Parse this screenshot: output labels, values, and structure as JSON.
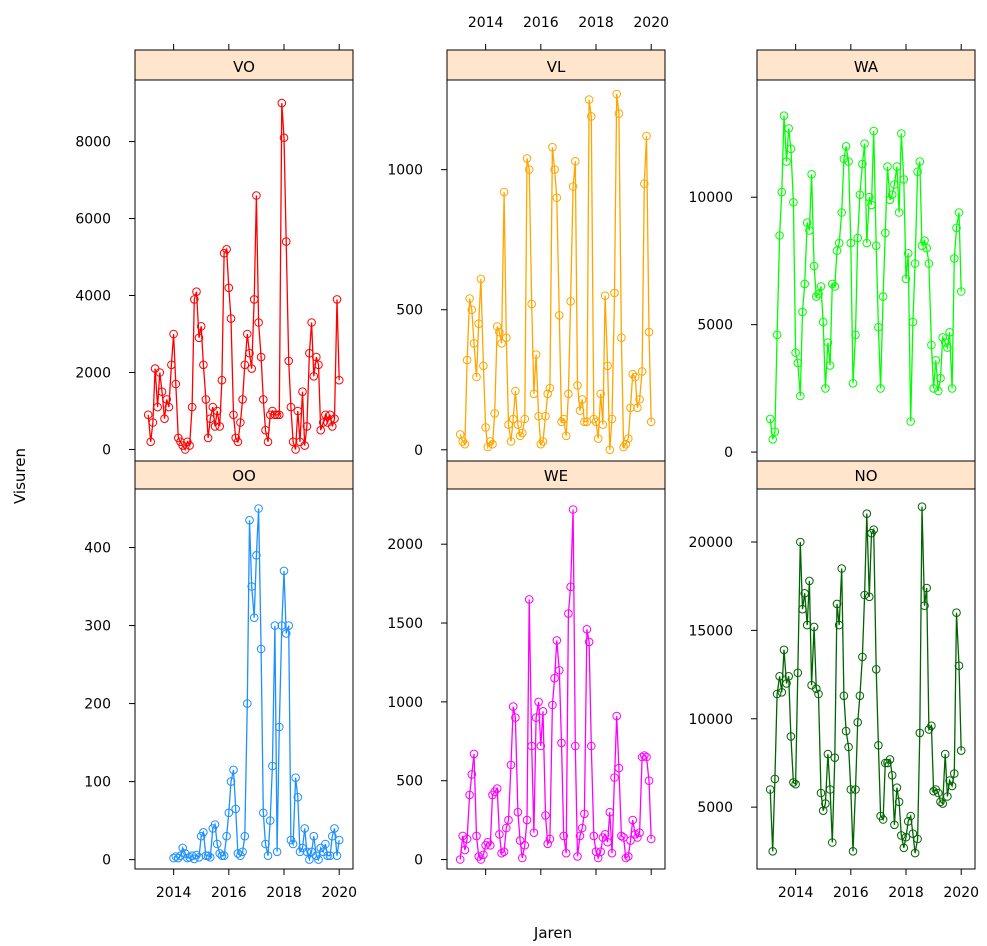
{
  "chart_data": {
    "type": "line",
    "xlabel": "Jaren",
    "ylabel": "Visuren",
    "x_ticks": [
      "2014",
      "2016",
      "2018",
      "2020"
    ],
    "xlim": [
      2012.6,
      2020.5
    ],
    "panels": [
      {
        "name": "VO",
        "color": "#ff0000",
        "ylim": [
          -300,
          9600
        ],
        "y_ticks": [
          0,
          2000,
          4000,
          6000,
          8000
        ],
        "x": [
          2013.08,
          2013.17,
          2013.25,
          2013.33,
          2013.42,
          2013.5,
          2013.58,
          2013.67,
          2013.75,
          2013.83,
          2013.92,
          2014.0,
          2014.08,
          2014.17,
          2014.25,
          2014.33,
          2014.42,
          2014.5,
          2014.58,
          2014.67,
          2014.75,
          2014.83,
          2014.92,
          2015.0,
          2015.08,
          2015.17,
          2015.25,
          2015.33,
          2015.42,
          2015.5,
          2015.58,
          2015.67,
          2015.75,
          2015.83,
          2015.92,
          2016.0,
          2016.08,
          2016.17,
          2016.25,
          2016.33,
          2016.42,
          2016.5,
          2016.58,
          2016.67,
          2016.75,
          2016.83,
          2016.92,
          2017.0,
          2017.08,
          2017.17,
          2017.25,
          2017.33,
          2017.42,
          2017.5,
          2017.58,
          2017.67,
          2017.75,
          2017.83,
          2017.92,
          2018.0,
          2018.08,
          2018.17,
          2018.25,
          2018.33,
          2018.42,
          2018.5,
          2018.58,
          2018.67,
          2018.75,
          2018.83,
          2018.92,
          2019.0,
          2019.08,
          2019.17,
          2019.25,
          2019.33,
          2019.42,
          2019.5,
          2019.58,
          2019.67,
          2019.75,
          2019.83,
          2019.92,
          2020.0
        ],
        "y": [
          900,
          200,
          700,
          2100,
          1100,
          2000,
          1500,
          800,
          1300,
          1100,
          2200,
          3000,
          1700,
          300,
          200,
          100,
          0,
          200,
          100,
          1100,
          3900,
          4100,
          2900,
          3200,
          2200,
          1300,
          300,
          800,
          1100,
          600,
          1000,
          600,
          1800,
          5100,
          5200,
          4200,
          3400,
          900,
          300,
          200,
          700,
          1300,
          2200,
          3000,
          2500,
          2100,
          3900,
          6600,
          3300,
          2400,
          1300,
          500,
          200,
          900,
          1000,
          900,
          900,
          900,
          9000,
          8100,
          5400,
          2300,
          1100,
          200,
          0,
          1000,
          200,
          1500,
          100,
          600,
          2500,
          3300,
          1900,
          2400,
          2200,
          500,
          700,
          900,
          700,
          900,
          600,
          800,
          3900,
          1800
        ]
      },
      {
        "name": "VL",
        "color": "#ffa500",
        "ylim": [
          -40,
          1320
        ],
        "y_ticks": [
          0,
          500,
          1000
        ],
        "x": [
          2013.08,
          2013.17,
          2013.25,
          2013.33,
          2013.42,
          2013.5,
          2013.58,
          2013.67,
          2013.75,
          2013.83,
          2013.92,
          2014.0,
          2014.08,
          2014.17,
          2014.25,
          2014.33,
          2014.42,
          2014.5,
          2014.58,
          2014.67,
          2014.75,
          2014.83,
          2014.92,
          2015.0,
          2015.08,
          2015.17,
          2015.25,
          2015.33,
          2015.42,
          2015.5,
          2015.58,
          2015.67,
          2015.75,
          2015.83,
          2015.92,
          2016.0,
          2016.08,
          2016.17,
          2016.25,
          2016.33,
          2016.42,
          2016.5,
          2016.58,
          2016.67,
          2016.75,
          2016.83,
          2016.92,
          2017.0,
          2017.08,
          2017.17,
          2017.25,
          2017.33,
          2017.42,
          2017.5,
          2017.58,
          2017.67,
          2017.75,
          2017.83,
          2017.92,
          2018.0,
          2018.08,
          2018.17,
          2018.25,
          2018.33,
          2018.42,
          2018.5,
          2018.58,
          2018.67,
          2018.75,
          2018.83,
          2018.92,
          2019.0,
          2019.08,
          2019.17,
          2019.25,
          2019.33,
          2019.42,
          2019.5,
          2019.58,
          2019.67,
          2019.75,
          2019.83,
          2019.92,
          2020.0
        ],
        "y": [
          55,
          30,
          20,
          320,
          540,
          500,
          380,
          260,
          450,
          610,
          300,
          80,
          10,
          30,
          20,
          130,
          440,
          420,
          380,
          920,
          400,
          90,
          30,
          110,
          210,
          90,
          50,
          60,
          110,
          1040,
          1000,
          520,
          200,
          340,
          120,
          20,
          30,
          120,
          200,
          220,
          1080,
          1000,
          900,
          480,
          100,
          110,
          50,
          200,
          530,
          940,
          1030,
          230,
          140,
          180,
          100,
          100,
          1250,
          1190,
          110,
          100,
          40,
          200,
          90,
          550,
          300,
          0,
          110,
          560,
          1270,
          1200,
          400,
          10,
          20,
          40,
          150,
          270,
          260,
          150,
          180,
          280,
          950,
          1120,
          420,
          100
        ]
      },
      {
        "name": "WA",
        "color": "#00ff00",
        "ylim": [
          -350,
          14600
        ],
        "y_ticks": [
          0,
          5000,
          10000
        ],
        "x": [
          2013.08,
          2013.17,
          2013.25,
          2013.33,
          2013.42,
          2013.5,
          2013.58,
          2013.67,
          2013.75,
          2013.83,
          2013.92,
          2014.0,
          2014.08,
          2014.17,
          2014.25,
          2014.33,
          2014.42,
          2014.5,
          2014.58,
          2014.67,
          2014.75,
          2014.83,
          2014.92,
          2015.0,
          2015.08,
          2015.17,
          2015.25,
          2015.33,
          2015.42,
          2015.5,
          2015.58,
          2015.67,
          2015.75,
          2015.83,
          2015.92,
          2016.0,
          2016.08,
          2016.17,
          2016.25,
          2016.33,
          2016.42,
          2016.5,
          2016.58,
          2016.67,
          2016.75,
          2016.83,
          2016.92,
          2017.0,
          2017.08,
          2017.17,
          2017.25,
          2017.33,
          2017.42,
          2017.5,
          2017.58,
          2017.67,
          2017.75,
          2017.83,
          2017.92,
          2018.0,
          2018.08,
          2018.17,
          2018.25,
          2018.33,
          2018.42,
          2018.5,
          2018.58,
          2018.67,
          2018.75,
          2018.83,
          2018.92,
          2019.0,
          2019.08,
          2019.17,
          2019.25,
          2019.33,
          2019.42,
          2019.5,
          2019.58,
          2019.67,
          2019.75,
          2019.83,
          2019.92,
          2020.0
        ],
        "y": [
          1300,
          500,
          800,
          4600,
          8500,
          10200,
          13200,
          11400,
          12700,
          11900,
          9800,
          3900,
          3500,
          2200,
          5500,
          6600,
          9000,
          8700,
          10900,
          7300,
          6100,
          6200,
          6500,
          5100,
          2500,
          4300,
          3400,
          6600,
          6500,
          7900,
          8200,
          9400,
          11500,
          12000,
          11400,
          8200,
          2700,
          4600,
          8400,
          10100,
          11300,
          12100,
          8200,
          10000,
          9700,
          12600,
          8100,
          4900,
          2500,
          6100,
          8600,
          11200,
          9900,
          10100,
          10500,
          11200,
          9400,
          12500,
          10700,
          6800,
          7800,
          1200,
          5100,
          7400,
          11000,
          11400,
          8100,
          8300,
          8000,
          7400,
          4200,
          2500,
          3600,
          2400,
          2900,
          4500,
          4300,
          4100,
          4700,
          2500,
          7600,
          8800,
          9400,
          6300
        ]
      },
      {
        "name": "OO",
        "color": "#1e90ff",
        "ylim": [
          -12,
          475
        ],
        "y_ticks": [
          0,
          100,
          200,
          300,
          400
        ],
        "x": [
          2014.0,
          2014.08,
          2014.17,
          2014.25,
          2014.33,
          2014.42,
          2014.5,
          2014.58,
          2014.67,
          2014.75,
          2014.83,
          2014.92,
          2015.0,
          2015.08,
          2015.17,
          2015.25,
          2015.33,
          2015.42,
          2015.5,
          2015.58,
          2015.67,
          2015.75,
          2015.83,
          2015.92,
          2016.0,
          2016.08,
          2016.17,
          2016.25,
          2016.33,
          2016.42,
          2016.5,
          2016.58,
          2016.67,
          2016.75,
          2016.83,
          2016.92,
          2017.0,
          2017.08,
          2017.17,
          2017.25,
          2017.33,
          2017.42,
          2017.5,
          2017.58,
          2017.67,
          2017.75,
          2017.83,
          2017.92,
          2018.0,
          2018.08,
          2018.17,
          2018.25,
          2018.33,
          2018.42,
          2018.5,
          2018.58,
          2018.67,
          2018.75,
          2018.83,
          2018.92,
          2019.0,
          2019.08,
          2019.17,
          2019.25,
          2019.33,
          2019.42,
          2019.5,
          2019.58,
          2019.67,
          2019.75,
          2019.83,
          2019.92,
          2020.0
        ],
        "y": [
          2,
          4,
          2,
          5,
          15,
          8,
          2,
          3,
          5,
          1,
          6,
          3,
          30,
          35,
          5,
          5,
          3,
          40,
          45,
          20,
          8,
          5,
          5,
          30,
          60,
          100,
          115,
          65,
          8,
          5,
          10,
          30,
          200,
          435,
          350,
          310,
          390,
          450,
          270,
          60,
          20,
          5,
          50,
          120,
          300,
          10,
          170,
          300,
          370,
          290,
          300,
          25,
          20,
          105,
          80,
          10,
          15,
          40,
          10,
          0,
          10,
          30,
          5,
          0,
          15,
          10,
          20,
          5,
          5,
          30,
          40,
          5,
          25
        ]
      },
      {
        "name": "WE",
        "color": "#ff00ff",
        "ylim": [
          -60,
          2350
        ],
        "y_ticks": [
          0,
          500,
          1000,
          1500,
          2000
        ],
        "x": [
          2013.08,
          2013.17,
          2013.25,
          2013.33,
          2013.42,
          2013.5,
          2013.58,
          2013.67,
          2013.75,
          2013.83,
          2013.92,
          2014.0,
          2014.08,
          2014.17,
          2014.25,
          2014.33,
          2014.42,
          2014.5,
          2014.58,
          2014.67,
          2014.75,
          2014.83,
          2014.92,
          2015.0,
          2015.08,
          2015.17,
          2015.25,
          2015.33,
          2015.42,
          2015.5,
          2015.58,
          2015.67,
          2015.75,
          2015.83,
          2015.92,
          2016.0,
          2016.08,
          2016.17,
          2016.25,
          2016.33,
          2016.42,
          2016.5,
          2016.58,
          2016.67,
          2016.75,
          2016.83,
          2016.92,
          2017.0,
          2017.08,
          2017.17,
          2017.25,
          2017.33,
          2017.42,
          2017.5,
          2017.58,
          2017.67,
          2017.75,
          2017.83,
          2017.92,
          2018.0,
          2018.08,
          2018.17,
          2018.25,
          2018.33,
          2018.42,
          2018.5,
          2018.58,
          2018.67,
          2018.75,
          2018.83,
          2018.92,
          2019.0,
          2019.08,
          2019.17,
          2019.25,
          2019.33,
          2019.42,
          2019.5,
          2019.58,
          2019.67,
          2019.75,
          2019.83,
          2019.92,
          2020.0
        ],
        "y": [
          0,
          150,
          60,
          130,
          410,
          540,
          670,
          150,
          20,
          0,
          30,
          90,
          110,
          90,
          410,
          430,
          450,
          160,
          40,
          50,
          200,
          250,
          600,
          970,
          900,
          300,
          120,
          10,
          90,
          250,
          1650,
          720,
          170,
          900,
          1000,
          720,
          940,
          280,
          100,
          130,
          980,
          1150,
          1390,
          1200,
          740,
          150,
          40,
          1560,
          1730,
          2220,
          720,
          20,
          150,
          200,
          290,
          1460,
          1380,
          720,
          150,
          50,
          10,
          50,
          140,
          160,
          110,
          300,
          40,
          520,
          910,
          580,
          150,
          140,
          10,
          20,
          120,
          250,
          160,
          140,
          170,
          650,
          660,
          650,
          500,
          130
        ]
      },
      {
        "name": "NO",
        "color": "#006400",
        "ylim": [
          1500,
          23000
        ],
        "y_ticks": [
          5000,
          10000,
          15000,
          20000
        ],
        "x": [
          2013.08,
          2013.17,
          2013.25,
          2013.33,
          2013.42,
          2013.5,
          2013.58,
          2013.67,
          2013.75,
          2013.83,
          2013.92,
          2014.0,
          2014.08,
          2014.17,
          2014.25,
          2014.33,
          2014.42,
          2014.5,
          2014.58,
          2014.67,
          2014.75,
          2014.83,
          2014.92,
          2015.0,
          2015.08,
          2015.17,
          2015.25,
          2015.33,
          2015.42,
          2015.5,
          2015.58,
          2015.67,
          2015.75,
          2015.83,
          2015.92,
          2016.0,
          2016.08,
          2016.17,
          2016.25,
          2016.33,
          2016.42,
          2016.5,
          2016.58,
          2016.67,
          2016.75,
          2016.83,
          2016.92,
          2017.0,
          2017.08,
          2017.17,
          2017.25,
          2017.33,
          2017.42,
          2017.5,
          2017.58,
          2017.67,
          2017.75,
          2017.83,
          2017.92,
          2018.0,
          2018.08,
          2018.17,
          2018.25,
          2018.33,
          2018.42,
          2018.5,
          2018.58,
          2018.67,
          2018.75,
          2018.83,
          2018.92,
          2019.0,
          2019.08,
          2019.17,
          2019.25,
          2019.33,
          2019.42,
          2019.5,
          2019.58,
          2019.67,
          2019.75,
          2019.83,
          2019.92,
          2020.0
        ],
        "y": [
          6000,
          2500,
          6600,
          11400,
          12400,
          11500,
          13900,
          12000,
          12400,
          9000,
          6400,
          6300,
          12600,
          20000,
          16200,
          17100,
          15300,
          17800,
          11900,
          15200,
          11700,
          11400,
          5800,
          4800,
          5200,
          8000,
          6000,
          3000,
          7800,
          16500,
          15300,
          18500,
          11300,
          9300,
          8400,
          6000,
          2500,
          6000,
          9800,
          11300,
          13500,
          17000,
          21600,
          16900,
          20500,
          20700,
          12800,
          8500,
          4500,
          4300,
          7500,
          7500,
          7700,
          6800,
          4000,
          6100,
          5300,
          3400,
          2700,
          3300,
          4200,
          4500,
          3500,
          2400,
          3200,
          9200,
          22000,
          16400,
          17400,
          9400,
          9600,
          5900,
          6000,
          5800,
          5300,
          5200,
          8000,
          5600,
          6500,
          6200,
          6900,
          16000,
          13000,
          8200
        ]
      }
    ]
  }
}
